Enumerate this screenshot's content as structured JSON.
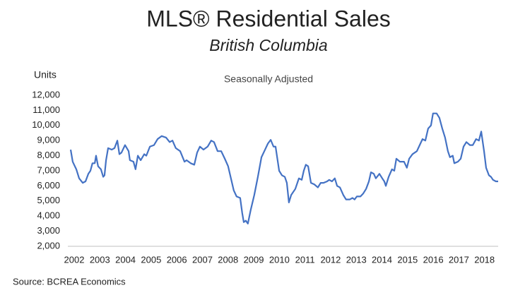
{
  "chart_data": {
    "type": "line",
    "title": "MLS® Residential Sales",
    "subtitle": "British Columbia",
    "y_label": "Units",
    "annotation": "Seasonally Adjusted",
    "source": "Source: BCREA Economics",
    "xlim": [
      2002,
      2018.67
    ],
    "xticks": [
      2002,
      2003,
      2004,
      2005,
      2006,
      2007,
      2008,
      2009,
      2010,
      2011,
      2012,
      2013,
      2014,
      2015,
      2016,
      2017,
      2018
    ],
    "ylim": [
      2000,
      12000
    ],
    "yticks": [
      {
        "value": 2000,
        "label": "2,000"
      },
      {
        "value": 3000,
        "label": "3,000"
      },
      {
        "value": 4000,
        "label": "4,000"
      },
      {
        "value": 5000,
        "label": "5,000"
      },
      {
        "value": 6000,
        "label": "6,000"
      },
      {
        "value": 7000,
        "label": "7,000"
      },
      {
        "value": 8000,
        "label": "8,000"
      },
      {
        "value": 9000,
        "label": "9,000"
      },
      {
        "value": 10000,
        "label": "10,000"
      },
      {
        "value": 11000,
        "label": "11,000"
      },
      {
        "value": 12000,
        "label": "12,000"
      }
    ],
    "grid": false,
    "x": [
      2002.0,
      2002.08,
      2002.22,
      2002.33,
      2002.47,
      2002.58,
      2002.69,
      2002.77,
      2002.85,
      2002.94,
      2002.99,
      2003.07,
      2003.18,
      2003.27,
      2003.32,
      2003.38,
      2003.46,
      2003.6,
      2003.71,
      2003.82,
      2003.9,
      2003.98,
      2004.12,
      2004.26,
      2004.31,
      2004.45,
      2004.53,
      2004.62,
      2004.73,
      2004.87,
      2004.95,
      2005.09,
      2005.25,
      2005.39,
      2005.55,
      2005.72,
      2005.86,
      2005.97,
      2006.1,
      2006.27,
      2006.44,
      2006.52,
      2006.68,
      2006.82,
      2006.93,
      2007.04,
      2007.18,
      2007.34,
      2007.48,
      2007.59,
      2007.73,
      2007.87,
      2008.01,
      2008.14,
      2008.25,
      2008.36,
      2008.47,
      2008.61,
      2008.69,
      2008.75,
      2008.83,
      2008.91,
      2009.02,
      2009.16,
      2009.3,
      2009.44,
      2009.58,
      2009.69,
      2009.8,
      2009.91,
      2009.99,
      2010.13,
      2010.24,
      2010.35,
      2010.43,
      2010.51,
      2010.6,
      2010.76,
      2010.9,
      2011.01,
      2011.09,
      2011.17,
      2011.26,
      2011.37,
      2011.5,
      2011.64,
      2011.75,
      2011.86,
      2012.0,
      2012.08,
      2012.19,
      2012.3,
      2012.39,
      2012.5,
      2012.63,
      2012.74,
      2012.88,
      2012.99,
      2013.07,
      2013.16,
      2013.3,
      2013.41,
      2013.52,
      2013.63,
      2013.71,
      2013.82,
      2013.9,
      2014.04,
      2014.15,
      2014.23,
      2014.29,
      2014.4,
      2014.53,
      2014.62,
      2014.7,
      2014.84,
      2015.0,
      2015.11,
      2015.2,
      2015.33,
      2015.5,
      2015.61,
      2015.72,
      2015.83,
      2015.94,
      2016.05,
      2016.13,
      2016.27,
      2016.38,
      2016.49,
      2016.6,
      2016.71,
      2016.79,
      2016.9,
      2016.96,
      2017.1,
      2017.21,
      2017.32,
      2017.43,
      2017.57,
      2017.68,
      2017.81,
      2017.92,
      2018.01,
      2018.12,
      2018.2,
      2018.31,
      2018.39,
      2018.47,
      2018.58,
      2018.67
    ],
    "series": [
      {
        "name": "MLS Residential Sales",
        "color": "#4472c4",
        "values": [
          8400,
          7600,
          7100,
          6500,
          6200,
          6300,
          6800,
          7000,
          7500,
          7500,
          8000,
          7300,
          7100,
          6600,
          6700,
          7700,
          8500,
          8400,
          8500,
          9000,
          8100,
          8200,
          8700,
          8300,
          7700,
          7600,
          7100,
          8000,
          7700,
          8100,
          8000,
          8600,
          8700,
          9100,
          9300,
          9200,
          8900,
          9000,
          8500,
          8300,
          7600,
          7700,
          7500,
          7400,
          8200,
          8600,
          8400,
          8600,
          9000,
          8900,
          8300,
          8300,
          7800,
          7300,
          6500,
          5700,
          5300,
          5200,
          4200,
          3600,
          3700,
          3500,
          4400,
          5400,
          6600,
          7900,
          8400,
          8800,
          9050,
          8600,
          8600,
          7000,
          6700,
          6600,
          6200,
          4900,
          5400,
          5800,
          6500,
          6400,
          7000,
          7400,
          7300,
          6200,
          6100,
          5900,
          6200,
          6200,
          6300,
          6400,
          6300,
          6500,
          6000,
          5900,
          5400,
          5100,
          5100,
          5200,
          5100,
          5300,
          5300,
          5500,
          5800,
          6300,
          6900,
          6800,
          6500,
          6800,
          6500,
          6300,
          6000,
          6600,
          7100,
          7000,
          7800,
          7600,
          7600,
          7200,
          7800,
          8100,
          8300,
          8700,
          9100,
          9000,
          9800,
          10000,
          10800,
          10800,
          10500,
          9800,
          9200,
          8300,
          7900,
          8000,
          7500,
          7600,
          7800,
          8600,
          8900,
          8700,
          8700,
          9100,
          9000,
          9600,
          8300,
          7200,
          6700,
          6600,
          6400,
          6300,
          6300
        ]
      }
    ]
  }
}
